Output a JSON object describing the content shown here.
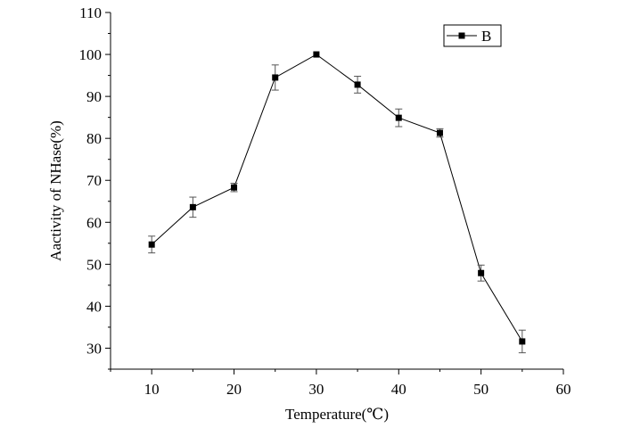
{
  "chart_data": {
    "type": "line",
    "xlabel": "Temperature(℃)",
    "ylabel": "Aactivity of NHase(%)",
    "xlim": [
      5,
      60
    ],
    "ylim": [
      25,
      110
    ],
    "xticks": [
      10,
      20,
      30,
      40,
      50,
      60
    ],
    "yticks": [
      30,
      40,
      50,
      60,
      70,
      80,
      90,
      100,
      110
    ],
    "grid": false,
    "legend_position": "top-right",
    "series": [
      {
        "name": "B",
        "color": "#000000",
        "marker": "square",
        "x": [
          10,
          15,
          20,
          25,
          30,
          35,
          40,
          45,
          50,
          55
        ],
        "y": [
          54.7,
          63.6,
          68.3,
          94.5,
          100.0,
          92.8,
          84.9,
          81.3,
          47.9,
          31.6
        ],
        "error": [
          2.0,
          2.4,
          1.0,
          3.0,
          0,
          2.0,
          2.1,
          1.0,
          1.9,
          2.7
        ]
      }
    ]
  }
}
